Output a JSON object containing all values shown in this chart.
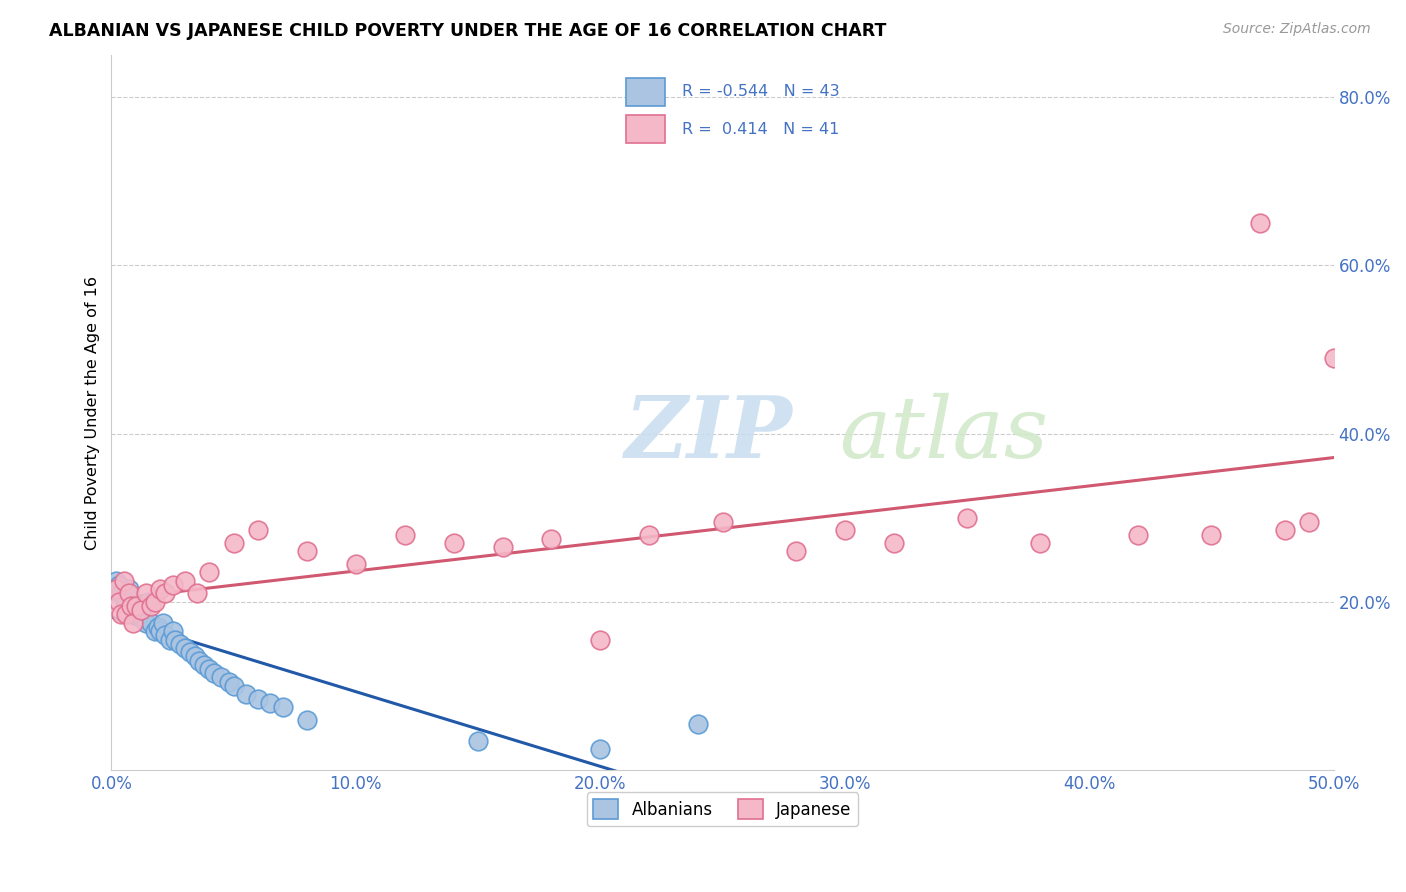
{
  "title": "ALBANIAN VS JAPANESE CHILD POVERTY UNDER THE AGE OF 16 CORRELATION CHART",
  "source": "Source: ZipAtlas.com",
  "ylabel": "Child Poverty Under the Age of 16",
  "xlabel": "",
  "xlim": [
    0.0,
    0.5
  ],
  "ylim": [
    0.0,
    0.85
  ],
  "xticks": [
    0.0,
    0.1,
    0.2,
    0.3,
    0.4,
    0.5
  ],
  "yticks": [
    0.2,
    0.4,
    0.6,
    0.8
  ],
  "ytick_labels": [
    "20.0%",
    "40.0%",
    "60.0%",
    "80.0%"
  ],
  "xtick_labels": [
    "0.0%",
    "10.0%",
    "20.0%",
    "30.0%",
    "40.0%",
    "50.0%"
  ],
  "albanians_color": "#aac4e2",
  "albanians_edge_color": "#5b9bd5",
  "japanese_color": "#f4b8c8",
  "japanese_edge_color": "#e07090",
  "trendline_albanian_color": "#2158a8",
  "trendline_japanese_color": "#d05870",
  "legend_R_albanian": "-0.544",
  "legend_N_albanian": 43,
  "legend_R_japanese": "0.414",
  "legend_N_japanese": 41,
  "watermark_zip": "ZIP",
  "watermark_atlas": "atlas",
  "albanian_x": [
    0.001,
    0.002,
    0.003,
    0.004,
    0.005,
    0.006,
    0.007,
    0.008,
    0.009,
    0.01,
    0.011,
    0.012,
    0.013,
    0.014,
    0.015,
    0.016,
    0.018,
    0.019,
    0.02,
    0.021,
    0.022,
    0.024,
    0.025,
    0.026,
    0.028,
    0.03,
    0.032,
    0.034,
    0.036,
    0.038,
    0.04,
    0.042,
    0.045,
    0.048,
    0.05,
    0.055,
    0.06,
    0.065,
    0.07,
    0.08,
    0.15,
    0.2,
    0.24
  ],
  "albanian_y": [
    0.215,
    0.225,
    0.22,
    0.21,
    0.205,
    0.2,
    0.215,
    0.195,
    0.19,
    0.185,
    0.19,
    0.185,
    0.18,
    0.175,
    0.2,
    0.175,
    0.165,
    0.17,
    0.165,
    0.175,
    0.16,
    0.155,
    0.165,
    0.155,
    0.15,
    0.145,
    0.14,
    0.135,
    0.13,
    0.125,
    0.12,
    0.115,
    0.11,
    0.105,
    0.1,
    0.09,
    0.085,
    0.08,
    0.075,
    0.06,
    0.035,
    0.025,
    0.055
  ],
  "japanese_x": [
    0.002,
    0.003,
    0.004,
    0.005,
    0.006,
    0.007,
    0.008,
    0.009,
    0.01,
    0.012,
    0.014,
    0.016,
    0.018,
    0.02,
    0.022,
    0.025,
    0.03,
    0.035,
    0.04,
    0.05,
    0.06,
    0.08,
    0.1,
    0.12,
    0.14,
    0.16,
    0.18,
    0.2,
    0.22,
    0.25,
    0.28,
    0.3,
    0.32,
    0.35,
    0.38,
    0.42,
    0.45,
    0.47,
    0.48,
    0.49,
    0.5
  ],
  "japanese_y": [
    0.215,
    0.2,
    0.185,
    0.225,
    0.185,
    0.21,
    0.195,
    0.175,
    0.195,
    0.19,
    0.21,
    0.195,
    0.2,
    0.215,
    0.21,
    0.22,
    0.225,
    0.21,
    0.235,
    0.27,
    0.285,
    0.26,
    0.245,
    0.28,
    0.27,
    0.265,
    0.275,
    0.155,
    0.28,
    0.295,
    0.26,
    0.285,
    0.27,
    0.3,
    0.27,
    0.28,
    0.28,
    0.65,
    0.285,
    0.295,
    0.49
  ]
}
